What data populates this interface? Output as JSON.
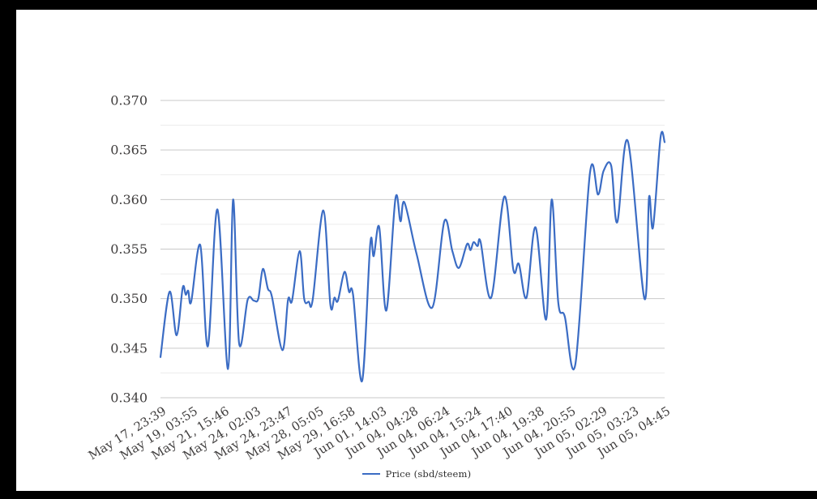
{
  "frame_color": "#000000",
  "background_color": "#ffffff",
  "legend": {
    "label": "Price (sbd/steem)"
  },
  "colors": {
    "line": "#3b6cc4",
    "grid_major": "#c9c9c9",
    "grid_minor": "#ececec",
    "axis_label": "#403e3e",
    "legend_text": "#2e2e2e"
  },
  "chart_data": {
    "type": "line",
    "title": "",
    "xlabel": "",
    "ylabel": "",
    "legend_position": "bottom-center",
    "grid": "horizontal-only",
    "ylim": [
      0.34,
      0.37
    ],
    "y_major_ticks": [
      0.34,
      0.345,
      0.35,
      0.355,
      0.36,
      0.365,
      0.37
    ],
    "y_minor_step": 0.0025,
    "y_tick_format": "0.000",
    "x_tick_labels": [
      "May 17, 23:39",
      "May 19, 03:55",
      "May 21, 15:46",
      "May 24, 02:03",
      "May 24, 23:47",
      "May 28, 05:05",
      "May 29, 16:58",
      "Jun 01, 14:03",
      "Jun 04, 04:28",
      "Jun 04, 06:24",
      "Jun 04, 15:24",
      "Jun 04, 17:40",
      "Jun 04, 19:38",
      "Jun 04, 20:55",
      "Jun 05, 02:29",
      "Jun 05, 03:23",
      "Jun 05, 04:45"
    ],
    "series": [
      {
        "name": "Price (sbd/steem)",
        "points": [
          {
            "x": 0.0,
            "y": 0.3441
          },
          {
            "x": 0.018,
            "y": 0.3507
          },
          {
            "x": 0.032,
            "y": 0.3463
          },
          {
            "x": 0.044,
            "y": 0.3511
          },
          {
            "x": 0.05,
            "y": 0.3504
          },
          {
            "x": 0.055,
            "y": 0.3508
          },
          {
            "x": 0.061,
            "y": 0.3497
          },
          {
            "x": 0.079,
            "y": 0.3554
          },
          {
            "x": 0.094,
            "y": 0.3452
          },
          {
            "x": 0.113,
            "y": 0.359
          },
          {
            "x": 0.134,
            "y": 0.3429
          },
          {
            "x": 0.144,
            "y": 0.36
          },
          {
            "x": 0.156,
            "y": 0.3455
          },
          {
            "x": 0.173,
            "y": 0.3499
          },
          {
            "x": 0.185,
            "y": 0.3498
          },
          {
            "x": 0.194,
            "y": 0.35
          },
          {
            "x": 0.203,
            "y": 0.353
          },
          {
            "x": 0.213,
            "y": 0.351
          },
          {
            "x": 0.221,
            "y": 0.3502
          },
          {
            "x": 0.242,
            "y": 0.3448
          },
          {
            "x": 0.253,
            "y": 0.3499
          },
          {
            "x": 0.261,
            "y": 0.3498
          },
          {
            "x": 0.276,
            "y": 0.3548
          },
          {
            "x": 0.285,
            "y": 0.35
          },
          {
            "x": 0.294,
            "y": 0.3497
          },
          {
            "x": 0.302,
            "y": 0.3499
          },
          {
            "x": 0.323,
            "y": 0.3589
          },
          {
            "x": 0.337,
            "y": 0.3494
          },
          {
            "x": 0.345,
            "y": 0.3501
          },
          {
            "x": 0.352,
            "y": 0.3498
          },
          {
            "x": 0.365,
            "y": 0.3527
          },
          {
            "x": 0.374,
            "y": 0.3507
          },
          {
            "x": 0.382,
            "y": 0.3504
          },
          {
            "x": 0.4,
            "y": 0.3417
          },
          {
            "x": 0.416,
            "y": 0.3555
          },
          {
            "x": 0.423,
            "y": 0.3543
          },
          {
            "x": 0.434,
            "y": 0.3572
          },
          {
            "x": 0.448,
            "y": 0.3488
          },
          {
            "x": 0.466,
            "y": 0.3601
          },
          {
            "x": 0.476,
            "y": 0.3578
          },
          {
            "x": 0.484,
            "y": 0.3597
          },
          {
            "x": 0.508,
            "y": 0.3545
          },
          {
            "x": 0.539,
            "y": 0.3491
          },
          {
            "x": 0.563,
            "y": 0.3578
          },
          {
            "x": 0.579,
            "y": 0.3548
          },
          {
            "x": 0.592,
            "y": 0.3531
          },
          {
            "x": 0.608,
            "y": 0.3555
          },
          {
            "x": 0.615,
            "y": 0.3549
          },
          {
            "x": 0.621,
            "y": 0.3557
          },
          {
            "x": 0.629,
            "y": 0.3553
          },
          {
            "x": 0.635,
            "y": 0.3557
          },
          {
            "x": 0.656,
            "y": 0.3501
          },
          {
            "x": 0.682,
            "y": 0.3603
          },
          {
            "x": 0.7,
            "y": 0.3529
          },
          {
            "x": 0.711,
            "y": 0.3535
          },
          {
            "x": 0.726,
            "y": 0.3501
          },
          {
            "x": 0.744,
            "y": 0.3572
          },
          {
            "x": 0.765,
            "y": 0.3479
          },
          {
            "x": 0.776,
            "y": 0.36
          },
          {
            "x": 0.789,
            "y": 0.3496
          },
          {
            "x": 0.802,
            "y": 0.3482
          },
          {
            "x": 0.823,
            "y": 0.3434
          },
          {
            "x": 0.852,
            "y": 0.3627
          },
          {
            "x": 0.868,
            "y": 0.3605
          },
          {
            "x": 0.879,
            "y": 0.3629
          },
          {
            "x": 0.894,
            "y": 0.3634
          },
          {
            "x": 0.906,
            "y": 0.3577
          },
          {
            "x": 0.927,
            "y": 0.3659
          },
          {
            "x": 0.96,
            "y": 0.35
          },
          {
            "x": 0.969,
            "y": 0.3602
          },
          {
            "x": 0.977,
            "y": 0.3572
          },
          {
            "x": 0.992,
            "y": 0.3663
          },
          {
            "x": 1.0,
            "y": 0.3658
          }
        ]
      }
    ]
  }
}
